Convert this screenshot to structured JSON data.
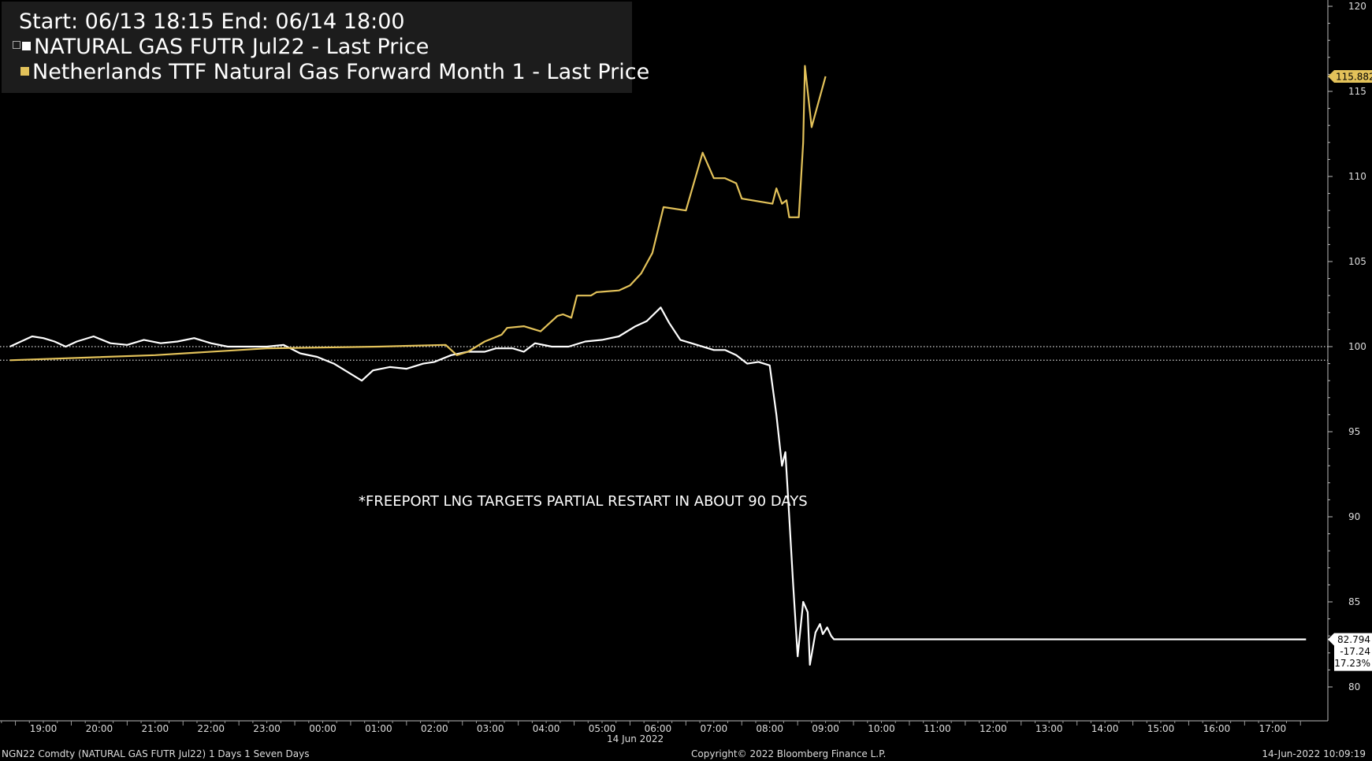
{
  "legend": {
    "header": "Start: 06/13 18:15 End: 06/14 18:00",
    "series0_label": "NATURAL GAS FUTR Jul22 - Last Price",
    "series1_label": "Netherlands TTF Natural Gas Forward Month 1 - Last Price"
  },
  "annotation": "*FREEPORT LNG TARGETS PARTIAL RESTART IN ABOUT 90 DAYS",
  "footer": {
    "left": "NGN22 Comdty (NATURAL GAS FUTR  Jul22) 1 Days 1 Seven Days",
    "center": "Copyright© 2022 Bloomberg Finance L.P.",
    "right": "14-Jun-2022 10:09:19"
  },
  "date_label": "14 Jun 2022",
  "colors": {
    "background": "#000000",
    "ng": "#ffffff",
    "ttf": "#e3c25a",
    "ttf_badge": "#e3c25a"
  },
  "chart_data": {
    "type": "line",
    "title": "",
    "ylim": [
      78,
      120
    ],
    "y_ticks": [
      80,
      85,
      90,
      95,
      100,
      105,
      110,
      115,
      120
    ],
    "x_ticks": [
      "19:00",
      "20:00",
      "21:00",
      "22:00",
      "23:00",
      "00:00",
      "01:00",
      "02:00",
      "03:00",
      "04:00",
      "05:00",
      "06:00",
      "07:00",
      "08:00",
      "09:00",
      "10:00",
      "11:00",
      "12:00",
      "13:00",
      "14:00",
      "15:00",
      "16:00",
      "17:00"
    ],
    "reference_lines": [
      100,
      99.2
    ],
    "last_value_badges": [
      {
        "series": "ttf",
        "value": "115.882"
      },
      {
        "series": "ng",
        "value": "82.794",
        "change": "-17.24",
        "change_pct": "-17.23%"
      }
    ],
    "series": [
      {
        "key": "ng",
        "name": "NATURAL GAS FUTR Jul22 - Last Price",
        "color": "#ffffff",
        "points": [
          [
            -0.6,
            100.0
          ],
          [
            -0.4,
            100.3
          ],
          [
            -0.2,
            100.6
          ],
          [
            0.0,
            100.5
          ],
          [
            0.2,
            100.3
          ],
          [
            0.4,
            100.0
          ],
          [
            0.6,
            100.3
          ],
          [
            0.9,
            100.6
          ],
          [
            1.2,
            100.2
          ],
          [
            1.5,
            100.1
          ],
          [
            1.8,
            100.4
          ],
          [
            2.1,
            100.2
          ],
          [
            2.4,
            100.3
          ],
          [
            2.7,
            100.5
          ],
          [
            3.0,
            100.2
          ],
          [
            3.3,
            100.0
          ],
          [
            3.6,
            100.0
          ],
          [
            4.0,
            100.0
          ],
          [
            4.3,
            100.1
          ],
          [
            4.6,
            99.6
          ],
          [
            4.9,
            99.4
          ],
          [
            5.2,
            99.0
          ],
          [
            5.5,
            98.4
          ],
          [
            5.7,
            98.0
          ],
          [
            5.9,
            98.6
          ],
          [
            6.2,
            98.8
          ],
          [
            6.5,
            98.7
          ],
          [
            6.8,
            99.0
          ],
          [
            7.0,
            99.1
          ],
          [
            7.3,
            99.5
          ],
          [
            7.6,
            99.7
          ],
          [
            7.9,
            99.7
          ],
          [
            8.1,
            99.9
          ],
          [
            8.4,
            99.9
          ],
          [
            8.6,
            99.7
          ],
          [
            8.8,
            100.2
          ],
          [
            9.1,
            100.0
          ],
          [
            9.4,
            100.0
          ],
          [
            9.7,
            100.3
          ],
          [
            10.0,
            100.4
          ],
          [
            10.3,
            100.6
          ],
          [
            10.6,
            101.2
          ],
          [
            10.8,
            101.5
          ],
          [
            11.05,
            102.3
          ],
          [
            11.2,
            101.4
          ],
          [
            11.4,
            100.4
          ],
          [
            11.7,
            100.1
          ],
          [
            12.0,
            99.8
          ],
          [
            12.2,
            99.8
          ],
          [
            12.4,
            99.5
          ],
          [
            12.6,
            99.0
          ],
          [
            12.8,
            99.1
          ],
          [
            13.0,
            98.9
          ],
          [
            13.12,
            96.0
          ],
          [
            13.22,
            93.0
          ],
          [
            13.28,
            93.8
          ],
          [
            13.35,
            90.0
          ],
          [
            13.42,
            86.0
          ],
          [
            13.5,
            81.8
          ],
          [
            13.6,
            85.0
          ],
          [
            13.68,
            84.4
          ],
          [
            13.72,
            81.3
          ],
          [
            13.82,
            83.2
          ],
          [
            13.9,
            83.7
          ],
          [
            13.95,
            83.1
          ],
          [
            14.03,
            83.5
          ],
          [
            14.1,
            83.0
          ],
          [
            14.15,
            82.8
          ],
          [
            22.6,
            82.794
          ]
        ]
      },
      {
        "key": "ttf",
        "name": "Netherlands TTF Natural Gas Forward Month 1 - Last Price",
        "color": "#e3c25a",
        "points": [
          [
            -0.6,
            99.2
          ],
          [
            2.0,
            99.5
          ],
          [
            4.0,
            99.9
          ],
          [
            6.0,
            100.0
          ],
          [
            7.2,
            100.1
          ],
          [
            7.4,
            99.5
          ],
          [
            7.6,
            99.7
          ],
          [
            7.9,
            100.3
          ],
          [
            8.2,
            100.7
          ],
          [
            8.3,
            101.1
          ],
          [
            8.6,
            101.2
          ],
          [
            8.9,
            100.9
          ],
          [
            9.2,
            101.8
          ],
          [
            9.3,
            101.9
          ],
          [
            9.45,
            101.7
          ],
          [
            9.55,
            103.0
          ],
          [
            9.8,
            103.0
          ],
          [
            9.9,
            103.2
          ],
          [
            10.3,
            103.3
          ],
          [
            10.5,
            103.6
          ],
          [
            10.7,
            104.3
          ],
          [
            10.9,
            105.5
          ],
          [
            11.1,
            108.2
          ],
          [
            11.5,
            108.0
          ],
          [
            11.8,
            111.4
          ],
          [
            12.0,
            109.9
          ],
          [
            12.2,
            109.9
          ],
          [
            12.4,
            109.6
          ],
          [
            12.5,
            108.7
          ],
          [
            13.05,
            108.4
          ],
          [
            13.12,
            109.3
          ],
          [
            13.22,
            108.4
          ],
          [
            13.3,
            108.6
          ],
          [
            13.35,
            107.6
          ],
          [
            13.52,
            107.6
          ],
          [
            13.6,
            112.0
          ],
          [
            13.63,
            116.5
          ],
          [
            13.75,
            112.9
          ],
          [
            14.0,
            115.882
          ]
        ]
      }
    ]
  }
}
